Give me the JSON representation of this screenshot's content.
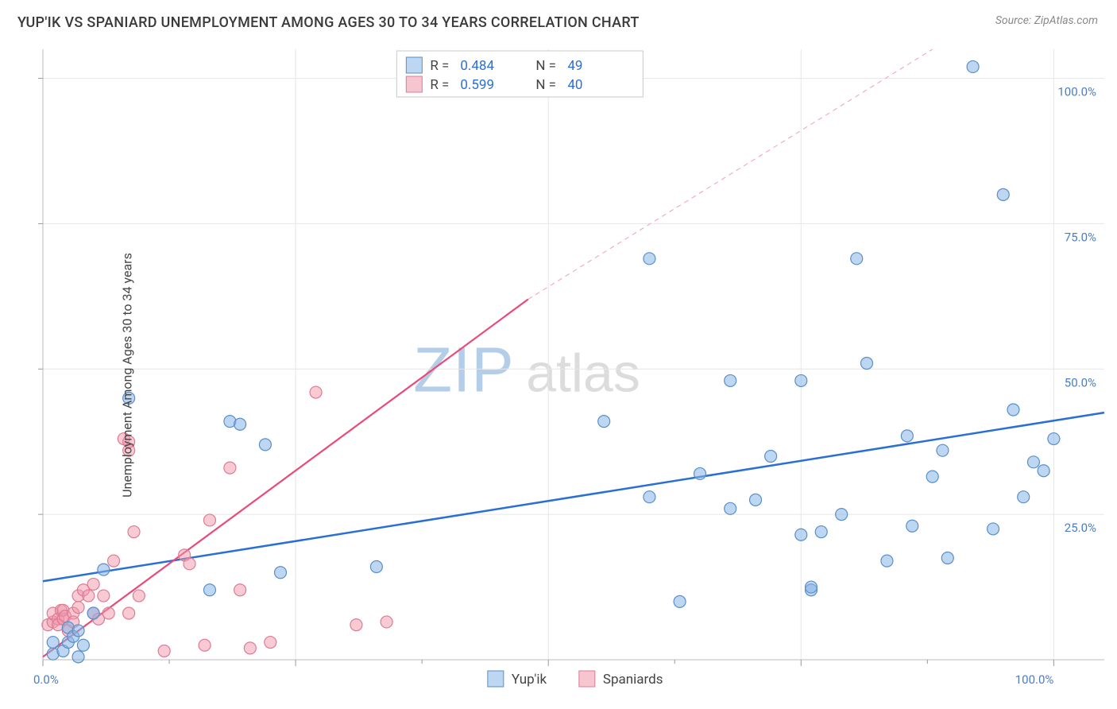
{
  "header": {
    "title": "YUP'IK VS SPANIARD UNEMPLOYMENT AMONG AGES 30 TO 34 YEARS CORRELATION CHART",
    "source_prefix": "Source: ",
    "source": "ZipAtlas.com"
  },
  "ylabel": "Unemployment Among Ages 30 to 34 years",
  "chart": {
    "type": "scatter",
    "xlim": [
      0,
      105
    ],
    "ylim": [
      0,
      105
    ],
    "x_ticks": [
      0,
      25,
      50,
      75,
      100
    ],
    "x_tick_labels": [
      "0.0%",
      "",
      "",
      "",
      "100.0%"
    ],
    "y_ticks": [
      25,
      50,
      75,
      100
    ],
    "y_tick_labels": [
      "25.0%",
      "50.0%",
      "75.0%",
      "100.0%"
    ],
    "y_minor_ticks": [
      12.5,
      37.5,
      62.5,
      87.5
    ],
    "x_minor_ticks": [
      12.5,
      37.5,
      62.5,
      87.5
    ],
    "grid_color": "#e6e6e6",
    "background_color": "#ffffff",
    "point_radius": 7.5,
    "series": {
      "yupik": {
        "label": "Yup'ik",
        "R_label": "R = ",
        "R": "0.484",
        "N_label": "N = ",
        "N": "49",
        "color_fill": "rgba(135,180,230,0.55)",
        "color_stroke": "#5a8fc8",
        "trend_color": "#2a6fd6",
        "trend": {
          "x1": 0,
          "y1": 13.5,
          "x2": 105,
          "y2": 42.5
        },
        "points": [
          [
            1,
            3
          ],
          [
            1,
            1
          ],
          [
            2,
            1.5
          ],
          [
            2.5,
            3
          ],
          [
            2.5,
            5.5
          ],
          [
            3,
            4
          ],
          [
            3.5,
            0.5
          ],
          [
            4,
            2.5
          ],
          [
            3.5,
            5
          ],
          [
            5,
            8
          ],
          [
            6,
            15.5
          ],
          [
            8.5,
            45
          ],
          [
            16.5,
            12
          ],
          [
            18.5,
            41
          ],
          [
            19.5,
            40.5
          ],
          [
            22,
            37
          ],
          [
            23.5,
            15
          ],
          [
            33,
            16
          ],
          [
            55.5,
            41
          ],
          [
            60,
            28
          ],
          [
            60,
            69
          ],
          [
            63,
            10
          ],
          [
            65,
            32
          ],
          [
            68,
            48
          ],
          [
            68,
            26
          ],
          [
            70.5,
            27.5
          ],
          [
            72,
            35
          ],
          [
            75,
            21.5
          ],
          [
            75,
            48
          ],
          [
            76,
            12
          ],
          [
            76,
            12.5
          ],
          [
            77,
            22
          ],
          [
            79,
            25
          ],
          [
            80.5,
            69
          ],
          [
            81.5,
            51
          ],
          [
            83.5,
            17
          ],
          [
            85.5,
            38.5
          ],
          [
            86,
            23
          ],
          [
            88,
            31.5
          ],
          [
            89,
            36
          ],
          [
            89.5,
            17.5
          ],
          [
            92,
            102
          ],
          [
            94,
            22.5
          ],
          [
            95,
            80
          ],
          [
            96,
            43
          ],
          [
            97,
            28
          ],
          [
            98,
            34
          ],
          [
            99,
            32.5
          ],
          [
            100,
            38
          ]
        ]
      },
      "spaniards": {
        "label": "Spaniards",
        "R_label": "R = ",
        "R": "0.599",
        "N_label": "N = ",
        "N": "40",
        "color_fill": "rgba(240,150,170,0.50)",
        "color_stroke": "#dd7b95",
        "trend_color": "#e94a77",
        "trend_solid": {
          "x1": 0,
          "y1": 0.5,
          "x2": 48,
          "y2": 62
        },
        "trend_dash": {
          "x1": 48,
          "y1": 62,
          "x2": 88,
          "y2": 105
        },
        "points": [
          [
            0.5,
            6
          ],
          [
            1,
            6.5
          ],
          [
            1,
            8
          ],
          [
            1.5,
            7
          ],
          [
            1.5,
            6
          ],
          [
            1.8,
            8.5
          ],
          [
            2,
            7
          ],
          [
            2,
            8.5
          ],
          [
            2.2,
            7.5
          ],
          [
            2.5,
            5
          ],
          [
            3,
            8
          ],
          [
            3,
            6.5
          ],
          [
            3.5,
            11
          ],
          [
            3.5,
            9
          ],
          [
            4,
            12
          ],
          [
            4.5,
            11
          ],
          [
            5,
            13
          ],
          [
            5,
            8
          ],
          [
            5.5,
            7
          ],
          [
            6,
            11
          ],
          [
            6.5,
            8
          ],
          [
            7,
            17
          ],
          [
            8,
            38
          ],
          [
            8.5,
            36
          ],
          [
            8.5,
            37.5
          ],
          [
            8.5,
            8
          ],
          [
            9,
            22
          ],
          [
            9.5,
            11
          ],
          [
            12,
            1.5
          ],
          [
            14,
            18
          ],
          [
            14.5,
            16.5
          ],
          [
            16,
            2.5
          ],
          [
            16.5,
            24
          ],
          [
            18.5,
            33
          ],
          [
            19.5,
            12
          ],
          [
            20.5,
            2
          ],
          [
            22.5,
            3
          ],
          [
            27,
            46
          ],
          [
            31,
            6
          ],
          [
            34,
            6.5
          ]
        ]
      }
    }
  },
  "bottom_legend": {
    "yupik": "Yup'ik",
    "spaniards": "Spaniards"
  },
  "watermark": {
    "a": "ZIP",
    "b": "atlas"
  }
}
